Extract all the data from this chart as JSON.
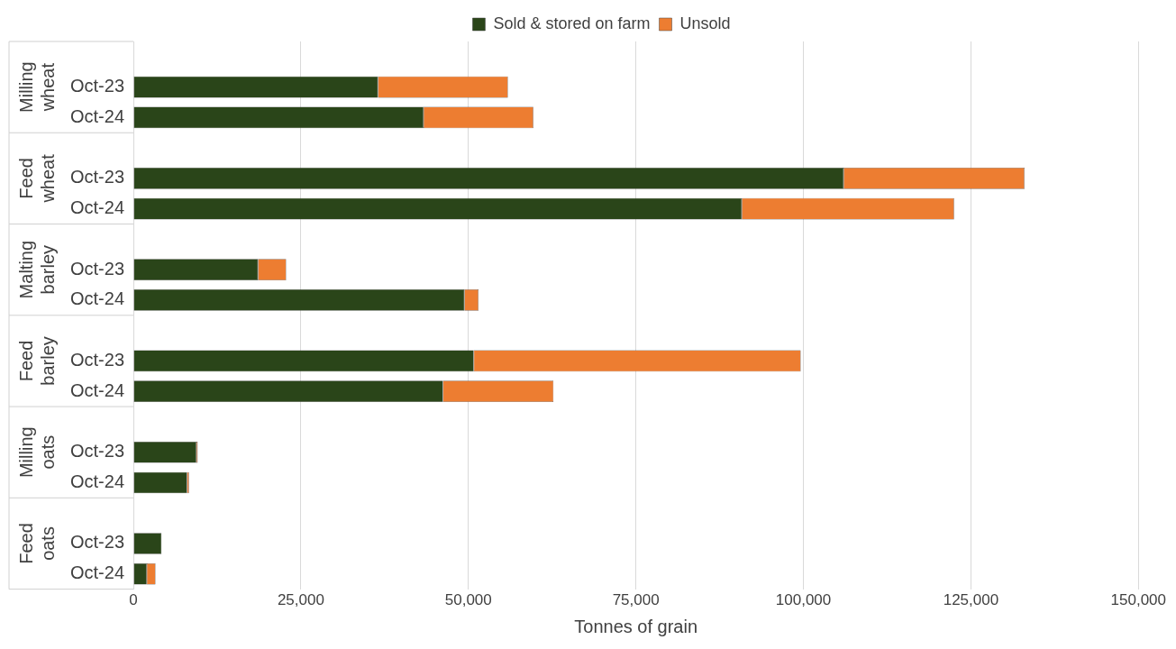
{
  "chart_data": {
    "type": "bar",
    "orientation": "horizontal",
    "stacked": true,
    "xlabel": "Tonnes of grain",
    "categories": [
      null,
      "Oct-23",
      "Oct-24",
      null,
      "Oct-23",
      "Oct-24",
      null,
      "Oct-23",
      "Oct-24",
      null,
      "Oct-23",
      "Oct-24",
      null,
      "Oct-23",
      "Oct-24",
      null,
      "Oct-23",
      "Oct-24"
    ],
    "series": [
      {
        "name": "Sold & stored on farm",
        "color": "#2a4519",
        "values": [
          null,
          36500,
          43300,
          null,
          106000,
          90800,
          null,
          18600,
          49400,
          null,
          50800,
          46200,
          null,
          9400,
          8000,
          null,
          4200,
          2000
        ]
      },
      {
        "name": "Unsold",
        "color": "#ed7d31",
        "values": [
          null,
          19400,
          16400,
          null,
          27000,
          31700,
          null,
          4200,
          2100,
          null,
          48800,
          16500,
          null,
          200,
          300,
          null,
          null,
          1300
        ]
      }
    ],
    "annotations": [
      "Milling wheat",
      "Feed wheat",
      "Malting barley",
      "Feed barley",
      "Milling oats",
      "Feed oats"
    ],
    "xlim": [
      0,
      150000
    ],
    "xticks": [
      0,
      {
        "value": 25000,
        "label": "25,000"
      },
      {
        "value": 50000,
        "label": "50,000"
      },
      {
        "value": 75000,
        "label": "75,000"
      },
      {
        "value": 100000,
        "label": "100,000"
      },
      {
        "value": 125000,
        "label": "125,000"
      },
      {
        "value": 150000,
        "label": "150,000"
      }
    ],
    "grid": "x",
    "legend": "top"
  }
}
